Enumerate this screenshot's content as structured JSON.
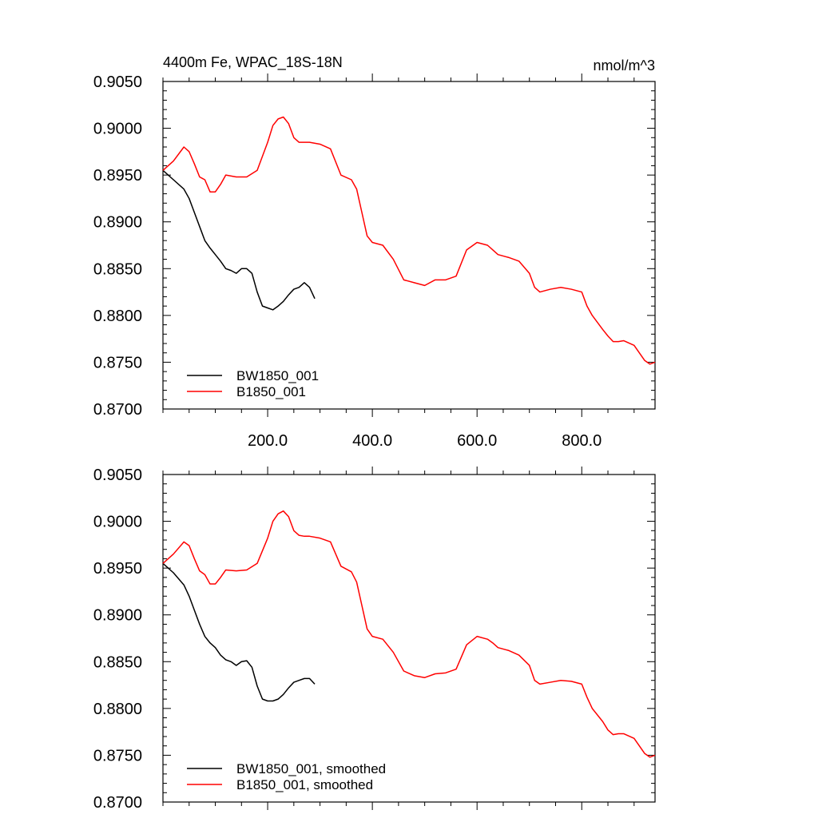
{
  "units_label": "nmol/m^3",
  "chart_data": [
    {
      "type": "line",
      "title": "4400m Fe, WPAC_18S-18N",
      "xlim": [
        0,
        940
      ],
      "ylim": [
        0.87,
        0.905
      ],
      "xticks": [
        200,
        400,
        600,
        800
      ],
      "xtick_labels": [
        "200.0",
        "400.0",
        "600.0",
        "800.0"
      ],
      "yticks": [
        0.87,
        0.875,
        0.88,
        0.885,
        0.89,
        0.895,
        0.9,
        0.905
      ],
      "ytick_labels": [
        "0.8700",
        "0.8750",
        "0.8800",
        "0.8850",
        "0.8900",
        "0.8950",
        "0.9000",
        "0.9050"
      ],
      "series": [
        {
          "name": "BW1850_001",
          "color": "#000000",
          "x": [
            0,
            20,
            40,
            50,
            60,
            70,
            80,
            90,
            100,
            110,
            120,
            130,
            140,
            150,
            160,
            170,
            180,
            190,
            200,
            210,
            220,
            230,
            240,
            250,
            260,
            270,
            280,
            290
          ],
          "y": [
            0.8955,
            0.8945,
            0.8935,
            0.8925,
            0.891,
            0.8895,
            0.888,
            0.8872,
            0.8865,
            0.8858,
            0.885,
            0.8848,
            0.8845,
            0.885,
            0.885,
            0.8845,
            0.8825,
            0.881,
            0.8808,
            0.8806,
            0.881,
            0.8815,
            0.8822,
            0.8828,
            0.883,
            0.8835,
            0.883,
            0.8818
          ]
        },
        {
          "name": "B1850_001",
          "color": "#ff0000",
          "x": [
            0,
            20,
            40,
            50,
            60,
            70,
            80,
            90,
            100,
            110,
            120,
            140,
            160,
            180,
            200,
            210,
            220,
            230,
            240,
            250,
            260,
            270,
            280,
            300,
            320,
            340,
            360,
            370,
            380,
            390,
            400,
            420,
            440,
            460,
            480,
            500,
            520,
            540,
            560,
            580,
            600,
            620,
            630,
            640,
            660,
            680,
            700,
            710,
            720,
            740,
            760,
            780,
            800,
            810,
            820,
            840,
            850,
            860,
            870,
            880,
            900,
            910,
            920,
            930,
            940
          ],
          "y": [
            0.8955,
            0.8965,
            0.898,
            0.8975,
            0.8962,
            0.8948,
            0.8945,
            0.8932,
            0.8932,
            0.894,
            0.895,
            0.8948,
            0.8948,
            0.8955,
            0.8985,
            0.9003,
            0.901,
            0.9012,
            0.9005,
            0.899,
            0.8985,
            0.8985,
            0.8985,
            0.8983,
            0.8978,
            0.895,
            0.8945,
            0.8935,
            0.891,
            0.8885,
            0.8878,
            0.8875,
            0.886,
            0.8838,
            0.8835,
            0.8832,
            0.8838,
            0.8838,
            0.8842,
            0.887,
            0.8878,
            0.8875,
            0.887,
            0.8865,
            0.8862,
            0.8858,
            0.8845,
            0.883,
            0.8825,
            0.8828,
            0.883,
            0.8828,
            0.8825,
            0.881,
            0.88,
            0.8785,
            0.8778,
            0.8772,
            0.8772,
            0.8773,
            0.8768,
            0.876,
            0.8752,
            0.8748,
            0.875
          ]
        }
      ]
    },
    {
      "type": "line",
      "title": "",
      "xlim": [
        0,
        940
      ],
      "ylim": [
        0.87,
        0.905
      ],
      "yticks": [
        0.87,
        0.875,
        0.88,
        0.885,
        0.89,
        0.895,
        0.9,
        0.905
      ],
      "ytick_labels": [
        "0.8700",
        "0.8750",
        "0.8800",
        "0.8850",
        "0.8900",
        "0.8950",
        "0.9000",
        "0.9050"
      ],
      "series": [
        {
          "name": "BW1850_001, smoothed",
          "color": "#000000",
          "x": [
            0,
            20,
            40,
            50,
            60,
            70,
            80,
            90,
            100,
            110,
            120,
            130,
            140,
            150,
            160,
            170,
            180,
            190,
            200,
            210,
            220,
            230,
            240,
            250,
            260,
            270,
            280,
            290
          ],
          "y": [
            0.8955,
            0.8945,
            0.8932,
            0.892,
            0.8905,
            0.889,
            0.8877,
            0.887,
            0.8865,
            0.8857,
            0.8852,
            0.885,
            0.8846,
            0.885,
            0.8851,
            0.8844,
            0.8824,
            0.881,
            0.8808,
            0.8808,
            0.881,
            0.8815,
            0.8822,
            0.8828,
            0.883,
            0.8832,
            0.8832,
            0.8826
          ]
        },
        {
          "name": "B1850_001, smoothed",
          "color": "#ff0000",
          "x": [
            0,
            20,
            40,
            50,
            60,
            70,
            80,
            90,
            100,
            110,
            120,
            140,
            160,
            180,
            200,
            210,
            220,
            230,
            240,
            250,
            260,
            270,
            280,
            300,
            320,
            340,
            360,
            370,
            380,
            390,
            400,
            420,
            440,
            460,
            480,
            500,
            520,
            540,
            560,
            580,
            600,
            620,
            630,
            640,
            660,
            680,
            700,
            710,
            720,
            740,
            760,
            780,
            800,
            810,
            820,
            840,
            850,
            860,
            870,
            880,
            900,
            910,
            920,
            930,
            940
          ],
          "y": [
            0.8955,
            0.8965,
            0.8978,
            0.8974,
            0.896,
            0.8947,
            0.8943,
            0.8933,
            0.8933,
            0.894,
            0.8948,
            0.8947,
            0.8948,
            0.8955,
            0.8982,
            0.9,
            0.9008,
            0.9011,
            0.9005,
            0.899,
            0.8985,
            0.8984,
            0.8984,
            0.8982,
            0.8978,
            0.8952,
            0.8946,
            0.8935,
            0.891,
            0.8885,
            0.8877,
            0.8874,
            0.886,
            0.884,
            0.8835,
            0.8833,
            0.8837,
            0.8838,
            0.8842,
            0.8868,
            0.8877,
            0.8874,
            0.887,
            0.8865,
            0.8862,
            0.8857,
            0.8846,
            0.883,
            0.8826,
            0.8828,
            0.883,
            0.8829,
            0.8826,
            0.8812,
            0.88,
            0.8786,
            0.8777,
            0.8772,
            0.8773,
            0.8773,
            0.8768,
            0.876,
            0.8752,
            0.8748,
            0.875
          ]
        }
      ]
    }
  ]
}
